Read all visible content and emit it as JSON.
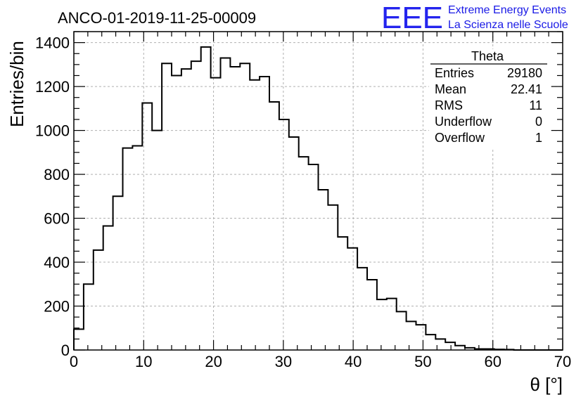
{
  "chart_data": {
    "type": "histogram",
    "title": "ANCO-01-2019-11-25-00009",
    "xlabel": "θ [°]",
    "ylabel": "Entries/bin",
    "xlim": [
      0,
      70
    ],
    "ylim": [
      0,
      1450
    ],
    "bin_width": 1.4,
    "x_ticks": [
      0,
      10,
      20,
      30,
      40,
      50,
      60,
      70
    ],
    "x_tick_labels": [
      "0",
      "10",
      "20",
      "30",
      "40",
      "50",
      "60",
      "70"
    ],
    "y_ticks": [
      0,
      200,
      400,
      600,
      800,
      1000,
      1200,
      1400
    ],
    "y_tick_labels": [
      "0",
      "200",
      "400",
      "600",
      "800",
      "1000",
      "1200",
      "1400"
    ],
    "grid": true,
    "values": [
      95,
      300,
      455,
      565,
      700,
      920,
      930,
      1125,
      1000,
      1305,
      1250,
      1280,
      1315,
      1380,
      1240,
      1330,
      1290,
      1305,
      1230,
      1245,
      1130,
      1050,
      970,
      880,
      845,
      730,
      660,
      515,
      465,
      375,
      320,
      230,
      235,
      175,
      130,
      115,
      70,
      50,
      35,
      20,
      10,
      5,
      5,
      3,
      2,
      0,
      0,
      0,
      0,
      0
    ]
  },
  "stats_box": {
    "title": "Theta",
    "rows": [
      {
        "label": "Entries",
        "value": "29180"
      },
      {
        "label": "Mean",
        "value": "22.41"
      },
      {
        "label": "RMS",
        "value": "11"
      },
      {
        "label": "Underflow",
        "value": "0"
      },
      {
        "label": "Overflow",
        "value": "1"
      }
    ]
  },
  "logo": {
    "mark": "EEE",
    "line1": "Extreme Energy Events",
    "line2": "La Scienza nelle Scuole",
    "color": "#2424ee"
  }
}
